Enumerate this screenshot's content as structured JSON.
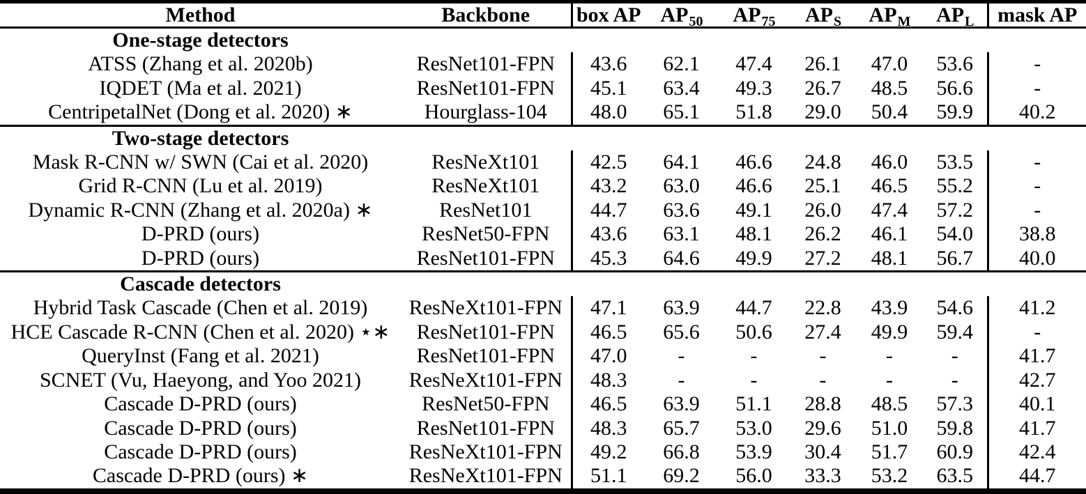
{
  "table": {
    "columns": [
      {
        "label": "Method",
        "sub": ""
      },
      {
        "label": "Backbone",
        "sub": ""
      },
      {
        "label": "box AP",
        "sub": ""
      },
      {
        "label": "AP",
        "sub": "50"
      },
      {
        "label": "AP",
        "sub": "75"
      },
      {
        "label": "AP",
        "sub": "S"
      },
      {
        "label": "AP",
        "sub": "M"
      },
      {
        "label": "AP",
        "sub": "L"
      },
      {
        "label": "mask AP",
        "sub": ""
      }
    ],
    "sections": [
      {
        "header": "One-stage detectors",
        "rows": [
          {
            "method": "ATSS (Zhang et al. 2020b)",
            "backbone": "ResNet101-FPN",
            "values": [
              "43.6",
              "62.1",
              "47.4",
              "26.1",
              "47.0",
              "53.6",
              "-"
            ]
          },
          {
            "method": "IQDET (Ma et al. 2021)",
            "backbone": "ResNet101-FPN",
            "values": [
              "45.1",
              "63.4",
              "49.3",
              "26.7",
              "48.5",
              "56.6",
              "-"
            ]
          },
          {
            "method": "CentripetalNet (Dong et al. 2020) ∗",
            "backbone": "Hourglass-104",
            "values": [
              "48.0",
              "65.1",
              "51.8",
              "29.0",
              "50.4",
              "59.9",
              "40.2"
            ]
          }
        ]
      },
      {
        "header": "Two-stage detectors",
        "rows": [
          {
            "method": "Mask R-CNN w/ SWN (Cai et al. 2020)",
            "backbone": "ResNeXt101",
            "values": [
              "42.5",
              "64.1",
              "46.6",
              "24.8",
              "46.0",
              "53.5",
              "-"
            ]
          },
          {
            "method": "Grid R-CNN (Lu et al. 2019)",
            "backbone": "ResNeXt101",
            "values": [
              "43.2",
              "63.0",
              "46.6",
              "25.1",
              "46.5",
              "55.2",
              "-"
            ]
          },
          {
            "method": "Dynamic R-CNN (Zhang et al. 2020a) ∗",
            "backbone": "ResNet101",
            "values": [
              "44.7",
              "63.6",
              "49.1",
              "26.0",
              "47.4",
              "57.2",
              "-"
            ]
          },
          {
            "method": "D-PRD (ours)",
            "backbone": "ResNet50-FPN",
            "values": [
              "43.6",
              "63.1",
              "48.1",
              "26.2",
              "46.1",
              "54.0",
              "38.8"
            ]
          },
          {
            "method": "D-PRD (ours)",
            "backbone": "ResNet101-FPN",
            "values": [
              "45.3",
              "64.6",
              "49.9",
              "27.2",
              "48.1",
              "56.7",
              "40.0"
            ]
          }
        ]
      },
      {
        "header": "Cascade detectors",
        "rows": [
          {
            "method": "Hybrid Task Cascade (Chen et al. 2019)",
            "backbone": "ResNeXt101-FPN",
            "values": [
              "47.1",
              "63.9",
              "44.7",
              "22.8",
              "43.9",
              "54.6",
              "41.2"
            ]
          },
          {
            "method": "HCE Cascade R-CNN (Chen et al. 2020) ⋆∗",
            "backbone": "ResNet101-FPN",
            "values": [
              "46.5",
              "65.6",
              "50.6",
              "27.4",
              "49.9",
              "59.4",
              "-"
            ]
          },
          {
            "method": "QueryInst (Fang et al. 2021)",
            "backbone": "ResNet101-FPN",
            "values": [
              "47.0",
              "-",
              "-",
              "-",
              "-",
              "-",
              "41.7"
            ]
          },
          {
            "method": "SCNET (Vu, Haeyong, and Yoo 2021)",
            "backbone": "ResNeXt101-FPN",
            "values": [
              "48.3",
              "-",
              "-",
              "-",
              "-",
              "-",
              "42.7"
            ]
          },
          {
            "method": "Cascade D-PRD (ours)",
            "backbone": "ResNet50-FPN",
            "values": [
              "46.5",
              "63.9",
              "51.1",
              "28.8",
              "48.5",
              "57.3",
              "40.1"
            ]
          },
          {
            "method": "Cascade D-PRD (ours)",
            "backbone": "ResNet101-FPN",
            "values": [
              "48.3",
              "65.7",
              "53.0",
              "29.6",
              "51.0",
              "59.8",
              "41.7"
            ]
          },
          {
            "method": "Cascade D-PRD (ours)",
            "backbone": "ResNeXt101-FPN",
            "values": [
              "49.2",
              "66.8",
              "53.9",
              "30.4",
              "51.7",
              "60.9",
              "42.4"
            ]
          },
          {
            "method": "Cascade D-PRD (ours) ∗",
            "backbone": "ResNeXt101-FPN",
            "values": [
              "51.1",
              "69.2",
              "56.0",
              "33.3",
              "53.2",
              "63.5",
              "44.7"
            ]
          }
        ]
      }
    ]
  }
}
